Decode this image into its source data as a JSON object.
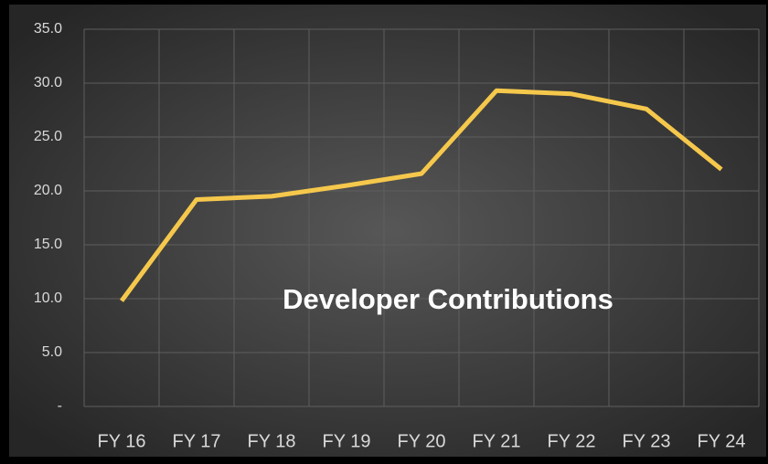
{
  "chart_data": {
    "type": "line",
    "title": "Developer Contributions",
    "categories": [
      "FY 16",
      "FY 17",
      "FY 18",
      "FY 19",
      "FY 20",
      "FY 21",
      "FY 22",
      "FY 23",
      "FY 24"
    ],
    "values": [
      9.8,
      19.2,
      19.5,
      20.5,
      21.6,
      29.3,
      29.0,
      27.6,
      22.0
    ],
    "color": "#f5c84c",
    "ylim": [
      0,
      35
    ],
    "yticks": [
      {
        "value": 0,
        "label": "-"
      },
      {
        "value": 5,
        "label": "5.0"
      },
      {
        "value": 10,
        "label": "10.0"
      },
      {
        "value": 15,
        "label": "15.0"
      },
      {
        "value": 20,
        "label": "20.0"
      },
      {
        "value": 25,
        "label": "25.0"
      },
      {
        "value": 30,
        "label": "30.0"
      },
      {
        "value": 35,
        "label": "35.0"
      }
    ],
    "grid": true
  }
}
